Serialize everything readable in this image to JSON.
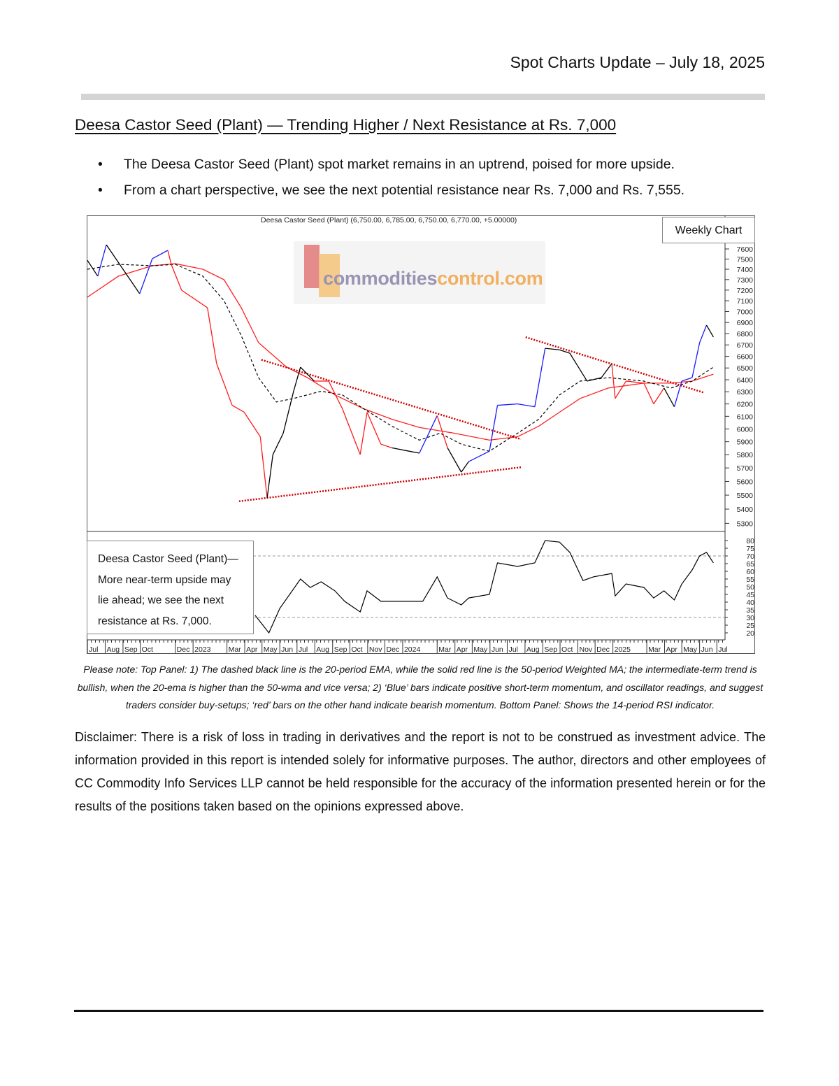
{
  "header": {
    "title": "Spot Charts Update – July 18, 2025"
  },
  "section": {
    "title": "Deesa Castor Seed (Plant) — Trending Higher / Next Resistance at Rs. 7,000"
  },
  "bullets": [
    "The Deesa Castor Seed (Plant) spot market remains in an uptrend, poised for more upside.",
    "From a chart perspective, we see the next potential resistance near Rs. 7,000 and Rs. 7,555."
  ],
  "chart_data": {
    "type": "line",
    "title": "Deesa Castor Seed (Plant) (6,750.00, 6,785.00, 6,750.00, 6,770.00, +5.00000)",
    "timeframe_label": "Weekly Chart",
    "watermark": "commoditiescontrol.com",
    "y_scale": "log",
    "ylim": [
      5250,
      7650
    ],
    "y_ticks": [
      5300,
      5400,
      5500,
      5600,
      5700,
      5800,
      5900,
      6000,
      6100,
      6200,
      6300,
      6400,
      6500,
      6600,
      6700,
      6800,
      6900,
      7000,
      7100,
      7200,
      7300,
      7400,
      7500,
      7600
    ],
    "colors": {
      "up": "#1a1aff",
      "down": "#ff1a1a",
      "neutral": "#000000",
      "ema": "#000000",
      "wma": "#ff2020",
      "trendline": "#cc0000"
    },
    "price": [
      [
        "2022-07-01",
        7487,
        "neutral"
      ],
      [
        "2022-07-19",
        7333,
        "neutral"
      ],
      [
        "2022-08-03",
        7642,
        "up"
      ],
      [
        "2022-09-30",
        7166,
        "neutral"
      ],
      [
        "2022-10-22",
        7503,
        "up"
      ],
      [
        "2022-11-18",
        7586,
        "up"
      ],
      [
        "2022-11-24",
        7448,
        "down"
      ],
      [
        "2022-12-12",
        7199,
        "down"
      ],
      [
        "2023-01-26",
        7035,
        "down"
      ],
      [
        "2023-02-11",
        6537,
        "down"
      ],
      [
        "2023-03-10",
        6189,
        "down"
      ],
      [
        "2023-03-31",
        6133,
        "down"
      ],
      [
        "2023-04-28",
        5939,
        "down"
      ],
      [
        "2023-05-10",
        5480,
        "down"
      ],
      [
        "2023-05-20",
        5801,
        "neutral"
      ],
      [
        "2023-06-07",
        5966,
        "neutral"
      ],
      [
        "2023-06-25",
        6304,
        "neutral"
      ],
      [
        "2023-07-07",
        6507,
        "neutral"
      ],
      [
        "2023-07-31",
        6389,
        "neutral"
      ],
      [
        "2023-08-25",
        6389,
        "down"
      ],
      [
        "2023-09-18",
        6161,
        "down"
      ],
      [
        "2023-10-19",
        5801,
        "down"
      ],
      [
        "2023-10-31",
        6133,
        "down"
      ],
      [
        "2023-11-24",
        5881,
        "down"
      ],
      [
        "2023-12-13",
        5853,
        "down"
      ],
      [
        "2024-01-12",
        5827,
        "neutral"
      ],
      [
        "2024-01-30",
        5812,
        "neutral"
      ],
      [
        "2024-03-01",
        6105,
        "up"
      ],
      [
        "2024-03-19",
        5853,
        "down"
      ],
      [
        "2024-04-12",
        5669,
        "neutral"
      ],
      [
        "2024-04-25",
        5748,
        "neutral"
      ],
      [
        "2024-05-31",
        5827,
        "up"
      ],
      [
        "2024-06-14",
        6189,
        "up"
      ],
      [
        "2024-07-19",
        6200,
        "up"
      ],
      [
        "2024-08-18",
        6177,
        "up"
      ],
      [
        "2024-09-05",
        6670,
        "up"
      ],
      [
        "2024-09-30",
        6657,
        "neutral"
      ],
      [
        "2024-10-18",
        6627,
        "neutral"
      ],
      [
        "2024-11-17",
        6389,
        "neutral"
      ],
      [
        "2024-12-12",
        6418,
        "neutral"
      ],
      [
        "2024-12-30",
        6537,
        "neutral"
      ],
      [
        "2025-01-05",
        6245,
        "down"
      ],
      [
        "2025-01-24",
        6389,
        "down"
      ],
      [
        "2025-02-24",
        6372,
        "down"
      ],
      [
        "2025-03-13",
        6200,
        "down"
      ],
      [
        "2025-03-31",
        6331,
        "down"
      ],
      [
        "2025-04-18",
        6177,
        "neutral"
      ],
      [
        "2025-05-01",
        6389,
        "up"
      ],
      [
        "2025-05-19",
        6418,
        "up"
      ],
      [
        "2025-06-01",
        6720,
        "up"
      ],
      [
        "2025-06-13",
        6876,
        "up"
      ],
      [
        "2025-06-25",
        6770,
        "neutral"
      ]
    ],
    "ema20": [
      [
        "2022-07-01",
        7400
      ],
      [
        "2022-08-24",
        7448
      ],
      [
        "2022-10-22",
        7434
      ],
      [
        "2022-12-01",
        7448
      ],
      [
        "2023-01-18",
        7333
      ],
      [
        "2023-02-24",
        7100
      ],
      [
        "2023-03-26",
        6782
      ],
      [
        "2023-04-25",
        6418
      ],
      [
        "2023-05-26",
        6216
      ],
      [
        "2023-06-25",
        6245
      ],
      [
        "2023-08-12",
        6304
      ],
      [
        "2023-09-18",
        6274
      ],
      [
        "2023-10-25",
        6161
      ],
      [
        "2023-12-13",
        6022
      ],
      [
        "2024-01-30",
        5912
      ],
      [
        "2024-03-06",
        5966
      ],
      [
        "2024-04-12",
        5881
      ],
      [
        "2024-05-31",
        5827
      ],
      [
        "2024-07-19",
        5966
      ],
      [
        "2024-08-25",
        6077
      ],
      [
        "2024-09-30",
        6274
      ],
      [
        "2024-11-05",
        6389
      ],
      [
        "2024-12-24",
        6418
      ],
      [
        "2025-02-24",
        6389
      ],
      [
        "2025-04-12",
        6331
      ],
      [
        "2025-05-19",
        6389
      ],
      [
        "2025-06-25",
        6507
      ]
    ],
    "wma50": [
      [
        "2022-07-01",
        7133
      ],
      [
        "2022-08-24",
        7333
      ],
      [
        "2022-10-22",
        7434
      ],
      [
        "2022-12-01",
        7455
      ],
      [
        "2023-01-18",
        7400
      ],
      [
        "2023-02-24",
        7299
      ],
      [
        "2023-03-26",
        7035
      ],
      [
        "2023-04-25",
        6720
      ],
      [
        "2023-06-13",
        6507
      ],
      [
        "2023-07-19",
        6418
      ],
      [
        "2023-09-05",
        6274
      ],
      [
        "2023-10-25",
        6161
      ],
      [
        "2023-12-13",
        6077
      ],
      [
        "2024-01-30",
        6011
      ],
      [
        "2024-03-31",
        5966
      ],
      [
        "2024-05-31",
        5912
      ],
      [
        "2024-07-19",
        5939
      ],
      [
        "2024-08-25",
        6022
      ],
      [
        "2024-09-30",
        6133
      ],
      [
        "2024-11-05",
        6245
      ],
      [
        "2024-12-24",
        6331
      ],
      [
        "2025-02-24",
        6372
      ],
      [
        "2025-04-12",
        6372
      ],
      [
        "2025-05-19",
        6389
      ],
      [
        "2025-06-25",
        6447
      ]
    ],
    "trendlines": [
      [
        [
          "2023-04-30",
          6570
        ],
        [
          "2024-07-25",
          5919
        ]
      ],
      [
        [
          "2024-08-02",
          6769
        ],
        [
          "2025-06-09",
          6292
        ]
      ],
      [
        [
          "2023-03-22",
          5456
        ],
        [
          "2024-07-27",
          5706
        ]
      ]
    ],
    "rsi": {
      "ylim": [
        20,
        80
      ],
      "y_ticks": [
        20,
        25,
        30,
        35,
        40,
        45,
        50,
        55,
        60,
        65,
        70,
        75,
        80
      ],
      "levels": [
        30,
        70
      ],
      "values": [
        [
          "2023-04-19",
          31.4
        ],
        [
          "2023-05-13",
          20
        ],
        [
          "2023-06-01",
          35.9
        ],
        [
          "2023-07-07",
          55
        ],
        [
          "2023-07-24",
          49.5
        ],
        [
          "2023-08-12",
          53.2
        ],
        [
          "2023-09-05",
          47.3
        ],
        [
          "2023-09-22",
          40.5
        ],
        [
          "2023-10-19",
          33.6
        ],
        [
          "2023-10-31",
          47.3
        ],
        [
          "2023-11-24",
          40.5
        ],
        [
          "2023-12-13",
          40.5
        ],
        [
          "2024-01-12",
          40.5
        ],
        [
          "2024-02-05",
          40.5
        ],
        [
          "2024-03-01",
          56.4
        ],
        [
          "2024-03-19",
          42.7
        ],
        [
          "2024-04-12",
          38.2
        ],
        [
          "2024-04-25",
          42.7
        ],
        [
          "2024-05-31",
          45
        ],
        [
          "2024-06-14",
          65.5
        ],
        [
          "2024-07-19",
          63.2
        ],
        [
          "2024-08-18",
          65.5
        ],
        [
          "2024-09-05",
          80
        ],
        [
          "2024-09-30",
          79
        ],
        [
          "2024-10-18",
          72.3
        ],
        [
          "2024-11-10",
          54
        ],
        [
          "2024-11-28",
          56.4
        ],
        [
          "2024-12-30",
          58.6
        ],
        [
          "2025-01-05",
          44
        ],
        [
          "2025-01-24",
          51.8
        ],
        [
          "2025-02-24",
          49.5
        ],
        [
          "2025-03-13",
          42.7
        ],
        [
          "2025-03-31",
          47.3
        ],
        [
          "2025-04-18",
          41.4
        ],
        [
          "2025-05-01",
          51.8
        ],
        [
          "2025-05-19",
          60.9
        ],
        [
          "2025-06-01",
          70
        ],
        [
          "2025-06-13",
          72.3
        ],
        [
          "2025-06-25",
          65.5
        ]
      ]
    },
    "x_ticks": [
      [
        "Jul",
        "2022-07-01"
      ],
      [
        "Aug",
        "2022-08-01"
      ],
      [
        "Sep",
        "2022-09-01"
      ],
      [
        "Oct",
        "2022-10-01"
      ],
      [
        "Dec",
        "2022-12-01"
      ],
      [
        "2023",
        "2023-01-01"
      ],
      [
        "Mar",
        "2023-03-01"
      ],
      [
        "Apr",
        "2023-04-01"
      ],
      [
        "May",
        "2023-05-01"
      ],
      [
        "Jun",
        "2023-06-01"
      ],
      [
        "Jul",
        "2023-07-01"
      ],
      [
        "Aug",
        "2023-08-01"
      ],
      [
        "Sep",
        "2023-09-01"
      ],
      [
        "Oct",
        "2023-10-01"
      ],
      [
        "Nov",
        "2023-11-01"
      ],
      [
        "Dec",
        "2023-12-01"
      ],
      [
        "2024",
        "2024-01-01"
      ],
      [
        "Mar",
        "2024-03-01"
      ],
      [
        "Apr",
        "2024-04-01"
      ],
      [
        "May",
        "2024-05-01"
      ],
      [
        "Jun",
        "2024-06-01"
      ],
      [
        "Jul",
        "2024-07-01"
      ],
      [
        "Aug",
        "2024-08-01"
      ],
      [
        "Sep",
        "2024-09-01"
      ],
      [
        "Oct",
        "2024-10-01"
      ],
      [
        "Nov",
        "2024-11-01"
      ],
      [
        "Dec",
        "2024-12-01"
      ],
      [
        "2025",
        "2025-01-01"
      ],
      [
        "Mar",
        "2025-03-01"
      ],
      [
        "Apr",
        "2025-04-01"
      ],
      [
        "May",
        "2025-05-01"
      ],
      [
        "Jun",
        "2025-06-01"
      ],
      [
        "Jul",
        "2025-07-01"
      ]
    ]
  },
  "chart_note": "Deesa Castor Seed (Plant)— More near-term upside may lie ahead; we see the next resistance at Rs. 7,000.",
  "caption": "Please note: Top Panel: 1) The dashed black line is the 20-period EMA, while the solid red line is the 50-period Weighted MA; the intermediate-term trend is bullish, when the 20-ema is higher than the 50-wma and vice versa; 2)  ‘Blue’  bars indicate positive short-term momentum, and oscillator readings, and suggest traders consider buy-setups;  ‘red’  bars on the other hand indicate bearish momentum. Bottom Panel: Shows the 14-period RSI indicator.",
  "disclaimer": "Disclaimer: There is a risk of loss in trading in derivatives and the report is not to be construed as investment advice. The information provided in this report is intended solely for informative purposes. The author, directors and other employees of CC Commodity Info Services LLP cannot be held responsible for the accuracy of the information presented herein or for the results of the positions taken based on the opinions expressed above."
}
